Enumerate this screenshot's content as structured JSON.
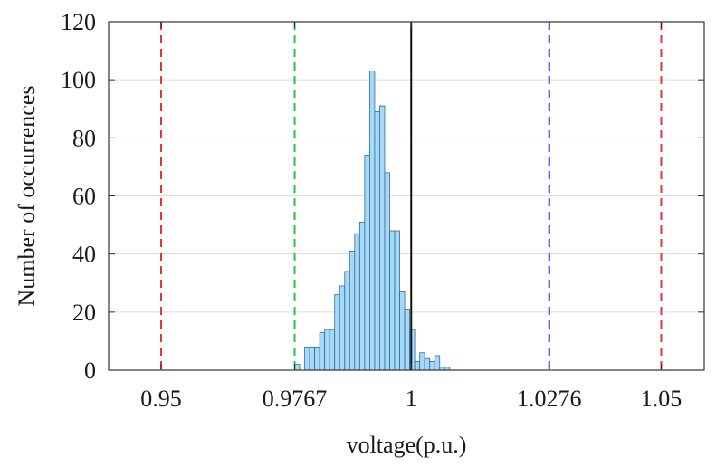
{
  "chart_data": {
    "type": "bar",
    "title": "",
    "xlabel": "voltage(p.u.)",
    "ylabel": "Number of occurrences",
    "xlim": [
      0.9395,
      1.0586
    ],
    "ylim": [
      0,
      120
    ],
    "grid": "horizontal",
    "legend": "none",
    "bar_color": "#a8d8f8",
    "bar_edge_color": "#2a6f97",
    "x_tick_values": [
      0.95,
      0.9767,
      1,
      1.0276,
      1.05
    ],
    "x_tick_labels": [
      "0.95",
      "0.9767",
      "1",
      "1.0276",
      "1.05"
    ],
    "y_tick_values": [
      0,
      20,
      40,
      60,
      80,
      100,
      120
    ],
    "y_tick_labels": [
      "0",
      "20",
      "40",
      "60",
      "80",
      "100",
      "120"
    ],
    "bin_width": 0.001,
    "bin_edges_start": 0.977,
    "bins": [
      {
        "x": 0.9772,
        "count": 2
      },
      {
        "x": 0.9787,
        "count": 0
      },
      {
        "x": 0.9792,
        "count": 8
      },
      {
        "x": 0.9802,
        "count": 8
      },
      {
        "x": 0.9812,
        "count": 8
      },
      {
        "x": 0.9822,
        "count": 13
      },
      {
        "x": 0.9832,
        "count": 14
      },
      {
        "x": 0.9842,
        "count": 14
      },
      {
        "x": 0.9852,
        "count": 26
      },
      {
        "x": 0.9862,
        "count": 29
      },
      {
        "x": 0.9872,
        "count": 34
      },
      {
        "x": 0.9882,
        "count": 41
      },
      {
        "x": 0.9892,
        "count": 47
      },
      {
        "x": 0.9902,
        "count": 51
      },
      {
        "x": 0.9912,
        "count": 74
      },
      {
        "x": 0.9922,
        "count": 103
      },
      {
        "x": 0.9932,
        "count": 89
      },
      {
        "x": 0.9942,
        "count": 91
      },
      {
        "x": 0.9952,
        "count": 68
      },
      {
        "x": 0.9962,
        "count": 48
      },
      {
        "x": 0.9972,
        "count": 48
      },
      {
        "x": 0.9982,
        "count": 27
      },
      {
        "x": 0.9992,
        "count": 21
      },
      {
        "x": 1.0002,
        "count": 14
      },
      {
        "x": 1.0012,
        "count": 3
      },
      {
        "x": 1.0022,
        "count": 6
      },
      {
        "x": 1.0032,
        "count": 4
      },
      {
        "x": 1.0042,
        "count": 3
      },
      {
        "x": 1.0052,
        "count": 5
      },
      {
        "x": 1.0062,
        "count": 1
      },
      {
        "x": 1.0072,
        "count": 1
      }
    ],
    "reference_lines": [
      {
        "x": 0.95,
        "color": "#e8333a",
        "style": "dashed"
      },
      {
        "x": 0.9767,
        "color": "#22c93a",
        "style": "dashed"
      },
      {
        "x": 1,
        "color": "#111111",
        "style": "solid"
      },
      {
        "x": 1.0276,
        "color": "#2233dd",
        "style": "dashed"
      },
      {
        "x": 1.05,
        "color": "#e8333a",
        "style": "dashed"
      }
    ]
  }
}
